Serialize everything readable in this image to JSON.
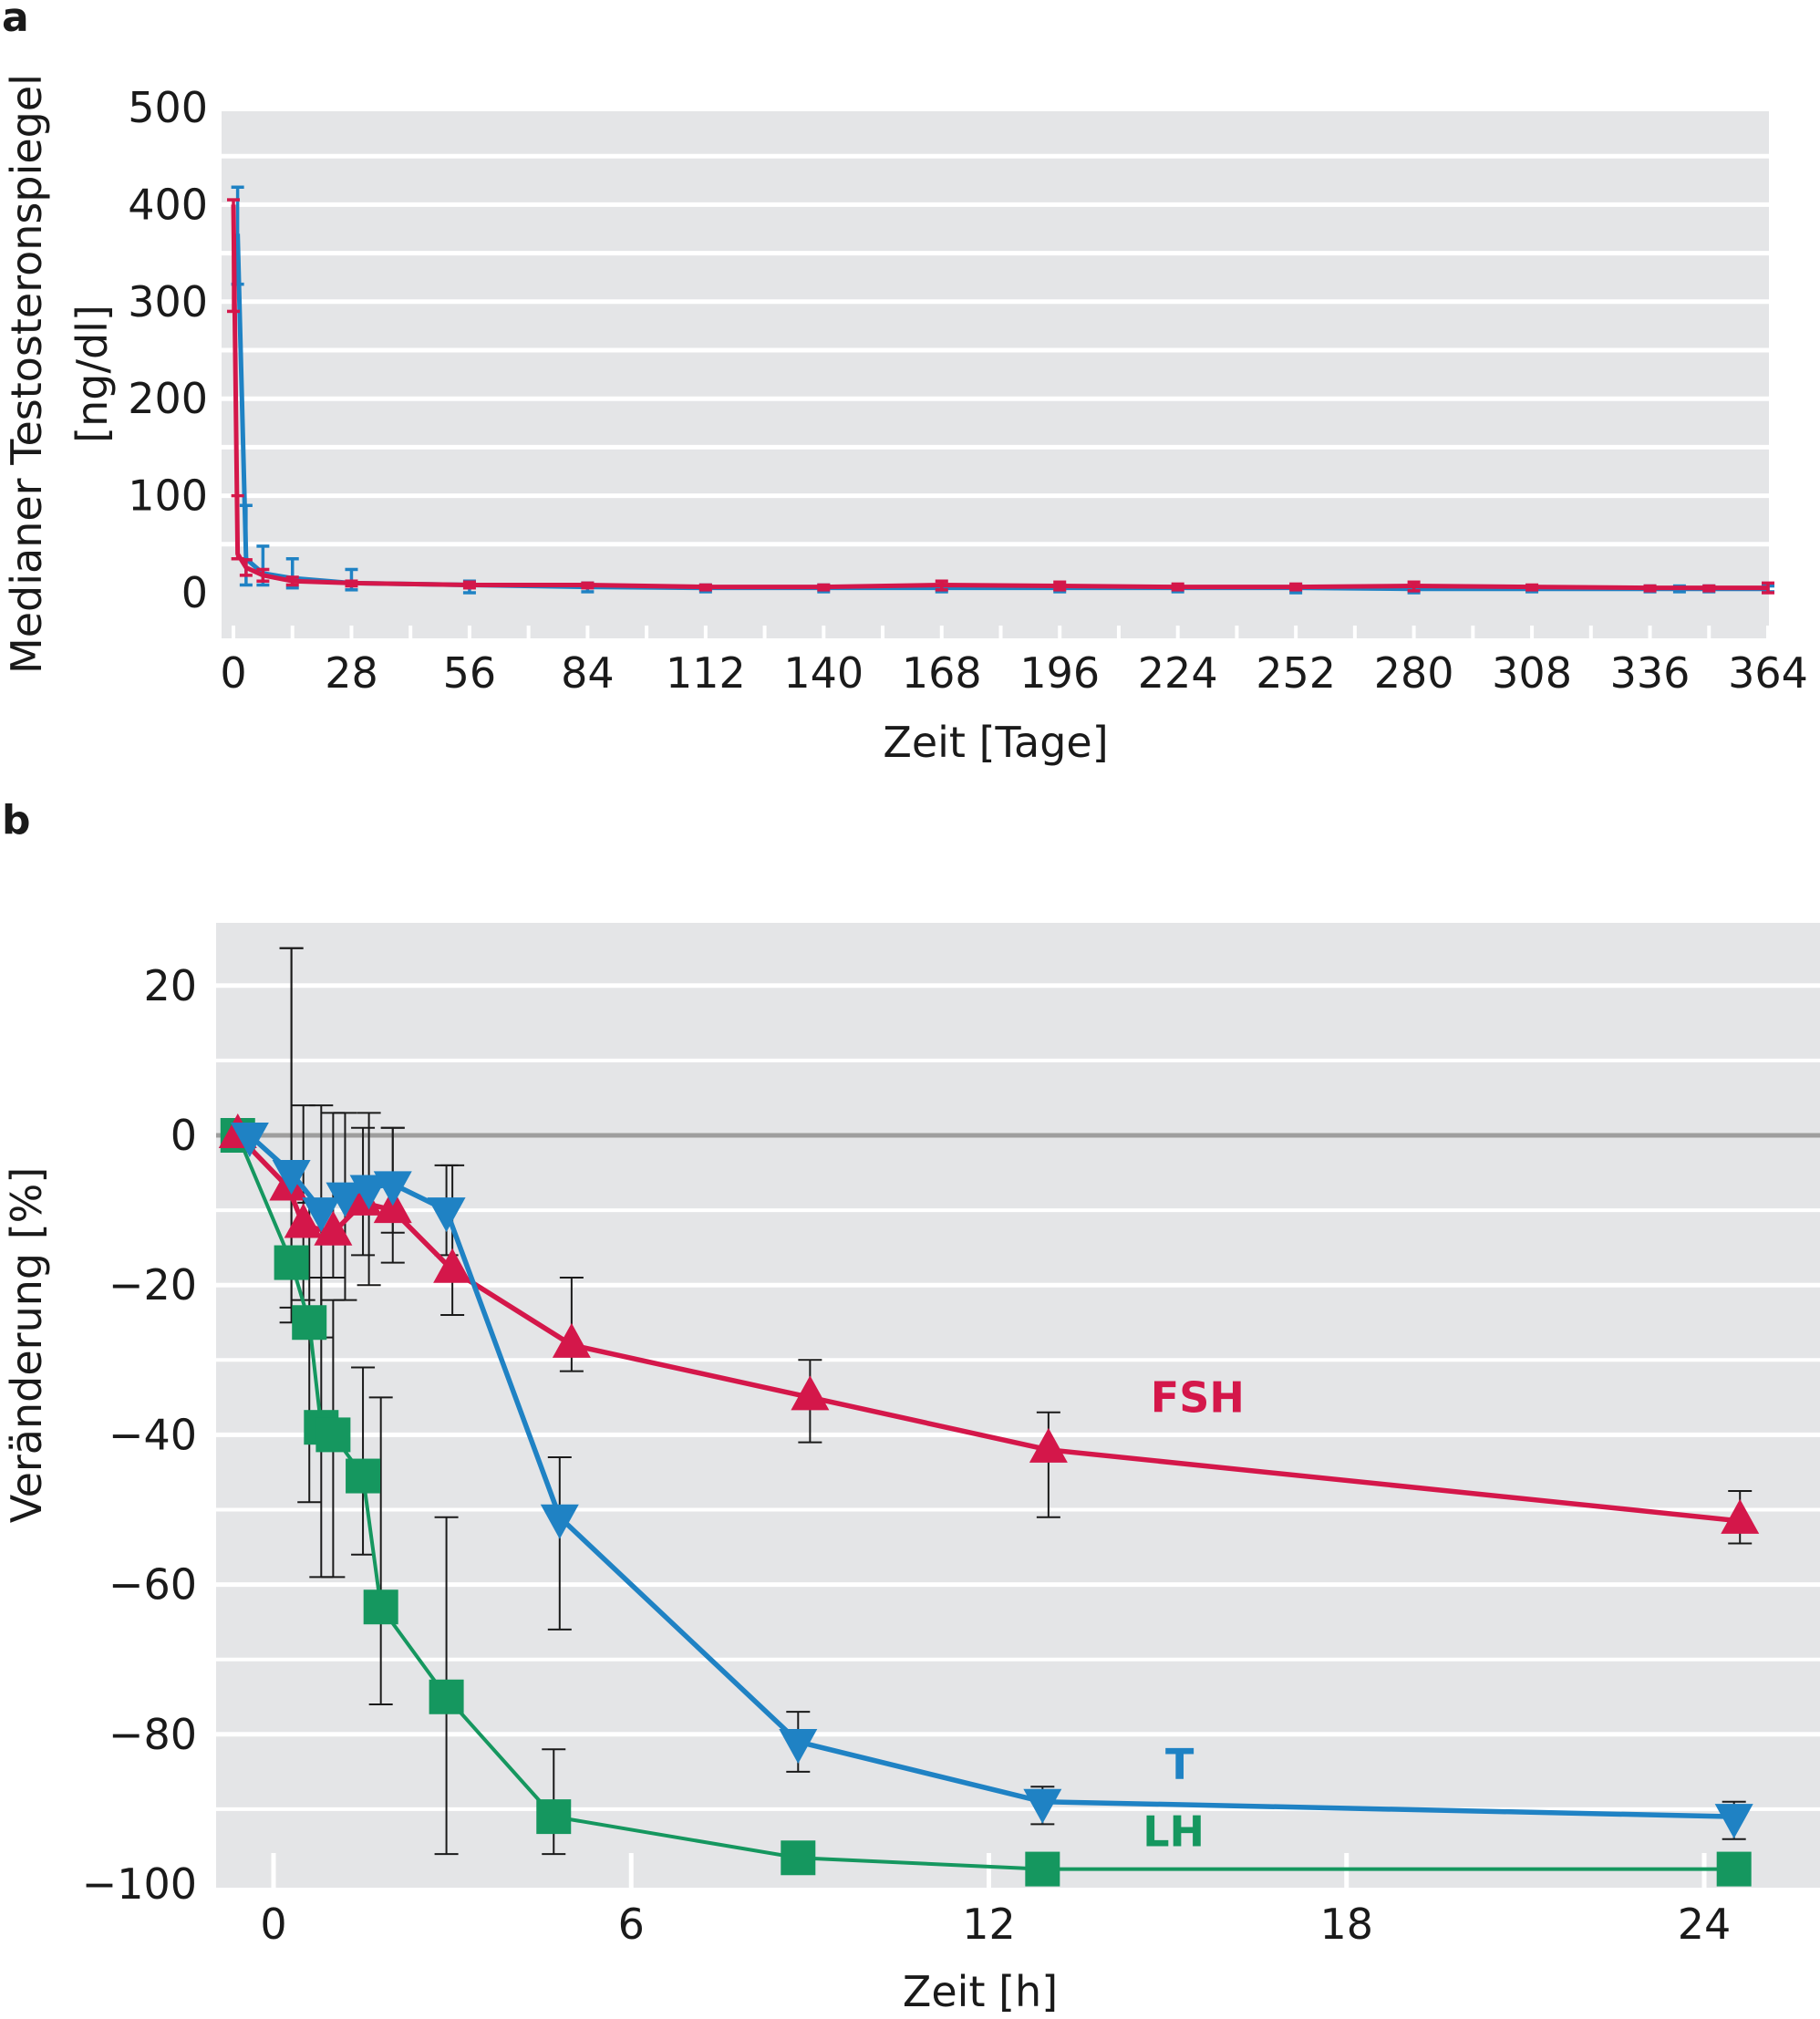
{
  "panels": {
    "a": {
      "letter": "a"
    },
    "b": {
      "letter": "b"
    }
  },
  "colors": {
    "background": "#ffffff",
    "plot_band": "#e4e5e7",
    "grid": "#ffffff",
    "zero_line": "#9e9e9e",
    "blue": "#1f82c4",
    "red": "#d4174a",
    "green": "#15975f",
    "error_bar_b": "#1a1a1a"
  },
  "chart_data": [
    {
      "id": "a",
      "type": "line",
      "title": "",
      "xlabel": "Zeit [Tage]",
      "ylabel": [
        "Medianer Testosteronspiegel",
        "[ng/dl]"
      ],
      "xlim": [
        0,
        364
      ],
      "ylim": [
        -40,
        500
      ],
      "xticks": [
        0,
        28,
        56,
        84,
        112,
        140,
        168,
        196,
        224,
        252,
        280,
        308,
        336,
        364
      ],
      "xtick_labels": [
        "0",
        "28",
        "56",
        "84",
        "112",
        "140",
        "168",
        "196",
        "224",
        "252",
        "280",
        "308",
        "336",
        "364"
      ],
      "yticks": [
        0,
        100,
        200,
        300,
        400,
        500
      ],
      "ytick_labels": [
        "0",
        "100",
        "200",
        "300",
        "400",
        "500"
      ],
      "grid": true,
      "legend": "none",
      "series": [
        {
          "color": "blue",
          "points": [
            {
              "x": 1,
              "y": 370,
              "lo": 318,
              "hi": 418
            },
            {
              "x": 3,
              "y": 35,
              "lo": 8,
              "hi": 90
            },
            {
              "x": 7,
              "y": 20,
              "lo": 8,
              "hi": 48
            },
            {
              "x": 14,
              "y": 15,
              "lo": 5,
              "hi": 35
            },
            {
              "x": 28,
              "y": 10,
              "lo": 3,
              "hi": 24
            },
            {
              "x": 56,
              "y": 8,
              "lo": 0,
              "hi": 12
            },
            {
              "x": 84,
              "y": 6,
              "lo": 1,
              "hi": 10
            },
            {
              "x": 112,
              "y": 5,
              "lo": 1,
              "hi": 8
            },
            {
              "x": 140,
              "y": 5,
              "lo": 1,
              "hi": 8
            },
            {
              "x": 168,
              "y": 5,
              "lo": 1,
              "hi": 8
            },
            {
              "x": 196,
              "y": 5,
              "lo": 1,
              "hi": 8
            },
            {
              "x": 224,
              "y": 5,
              "lo": 1,
              "hi": 8
            },
            {
              "x": 252,
              "y": 5,
              "lo": 0,
              "hi": 8
            },
            {
              "x": 280,
              "y": 4,
              "lo": 0,
              "hi": 7
            },
            {
              "x": 308,
              "y": 4,
              "lo": 1,
              "hi": 7
            },
            {
              "x": 336,
              "y": 4,
              "lo": 1,
              "hi": 7
            },
            {
              "x": 343,
              "y": 4,
              "lo": 1,
              "hi": 7
            },
            {
              "x": 350,
              "y": 4,
              "lo": 1,
              "hi": 7
            },
            {
              "x": 364,
              "y": 4,
              "lo": 1,
              "hi": 7
            }
          ]
        },
        {
          "color": "red",
          "points": [
            {
              "x": 0,
              "y": 400,
              "lo": 290,
              "hi": 405
            },
            {
              "x": 1,
              "y": 40,
              "lo": 35,
              "hi": 100
            },
            {
              "x": 3,
              "y": 26,
              "lo": 18,
              "hi": 34
            },
            {
              "x": 7,
              "y": 18,
              "lo": 12,
              "hi": 24
            },
            {
              "x": 14,
              "y": 12,
              "lo": 8,
              "hi": 16
            },
            {
              "x": 28,
              "y": 10,
              "lo": 7,
              "hi": 12
            },
            {
              "x": 56,
              "y": 8,
              "lo": 5,
              "hi": 11
            },
            {
              "x": 84,
              "y": 8,
              "lo": 5,
              "hi": 10
            },
            {
              "x": 112,
              "y": 6,
              "lo": 3,
              "hi": 8
            },
            {
              "x": 140,
              "y": 6,
              "lo": 3,
              "hi": 8
            },
            {
              "x": 168,
              "y": 8,
              "lo": 3,
              "hi": 12
            },
            {
              "x": 196,
              "y": 7,
              "lo": 3,
              "hi": 11
            },
            {
              "x": 224,
              "y": 6,
              "lo": 3,
              "hi": 9
            },
            {
              "x": 252,
              "y": 6,
              "lo": 3,
              "hi": 9
            },
            {
              "x": 280,
              "y": 7,
              "lo": 2,
              "hi": 11
            },
            {
              "x": 308,
              "y": 6,
              "lo": 3,
              "hi": 8
            },
            {
              "x": 336,
              "y": 5,
              "lo": 2,
              "hi": 7
            },
            {
              "x": 350,
              "y": 5,
              "lo": 2,
              "hi": 7
            },
            {
              "x": 364,
              "y": 5,
              "lo": 0,
              "hi": 10
            }
          ]
        }
      ]
    },
    {
      "id": "b",
      "type": "line",
      "title": "",
      "xlabel": "Zeit [h]",
      "ylabel": "Veränderung [%]",
      "xlim": [
        -1,
        25.5
      ],
      "ylim": [
        -101,
        29
      ],
      "xticks": [
        0,
        6,
        12,
        18,
        24
      ],
      "xtick_labels": [
        "0",
        "6",
        "12",
        "18",
        "24"
      ],
      "yticks": [
        20,
        0,
        -20,
        -40,
        -60,
        -80,
        -100
      ],
      "ytick_labels": [
        "20",
        "0",
        "−20",
        "−40",
        "−60",
        "−80",
        "−100"
      ],
      "grid": true,
      "legend": "inline labels",
      "series": [
        {
          "name": "FSH",
          "color": "red",
          "marker": "triangle-up",
          "label_pos": {
            "x": 15.5,
            "y": -35
          },
          "points": [
            {
              "x": -0.6,
              "y": 0
            },
            {
              "x": 0.25,
              "y": -7
            },
            {
              "x": 0.5,
              "y": -12,
              "lo": -22,
              "hi": 4
            },
            {
              "x": 1.0,
              "y": -13,
              "lo": -19,
              "hi": 3
            },
            {
              "x": 1.5,
              "y": -9,
              "lo": -16,
              "hi": 1
            },
            {
              "x": 2.0,
              "y": -10,
              "lo": -17,
              "hi": 1
            },
            {
              "x": 3.0,
              "y": -18,
              "lo": -24,
              "hi": -4
            },
            {
              "x": 5.0,
              "y": -28,
              "lo": -31.5,
              "hi": -19
            },
            {
              "x": 9.0,
              "y": -35,
              "lo": -41,
              "hi": -30
            },
            {
              "x": 13.0,
              "y": -42,
              "lo": -51,
              "hi": -37
            },
            {
              "x": 24.6,
              "y": -51.5,
              "lo": -54.5,
              "hi": -47.5
            }
          ]
        },
        {
          "name": "T",
          "color": "blue",
          "marker": "triangle-down",
          "label_pos": {
            "x": 15.2,
            "y": -84
          },
          "points": [
            {
              "x": -0.4,
              "y": 0
            },
            {
              "x": 0.3,
              "y": -5,
              "lo": -23,
              "hi": 25
            },
            {
              "x": 0.8,
              "y": -10,
              "lo": -27,
              "hi": 4
            },
            {
              "x": 1.2,
              "y": -8,
              "lo": -22,
              "hi": 3
            },
            {
              "x": 1.6,
              "y": -7,
              "lo": -20,
              "hi": 3
            },
            {
              "x": 2.0,
              "y": -6.5,
              "lo": -13,
              "hi": 1
            },
            {
              "x": 2.9,
              "y": -10,
              "lo": -16,
              "hi": -4
            },
            {
              "x": 4.8,
              "y": -51,
              "lo": -66,
              "hi": -43
            },
            {
              "x": 8.8,
              "y": -81,
              "lo": -85,
              "hi": -77
            },
            {
              "x": 12.9,
              "y": -89,
              "lo": -92,
              "hi": -87
            },
            {
              "x": 24.5,
              "y": -91,
              "lo": -94,
              "hi": -89
            }
          ]
        },
        {
          "name": "LH",
          "color": "green",
          "marker": "square",
          "label_pos": {
            "x": 15.1,
            "y": -93
          },
          "points": [
            {
              "x": -0.6,
              "y": 0
            },
            {
              "x": 0.3,
              "y": -17,
              "lo": -25,
              "hi": 25
            },
            {
              "x": 0.6,
              "y": -25,
              "lo": -49,
              "hi": -9
            },
            {
              "x": 0.8,
              "y": -39,
              "lo": -59,
              "hi": -19
            },
            {
              "x": 1.0,
              "y": -40,
              "lo": -59,
              "hi": -22
            },
            {
              "x": 1.5,
              "y": -45.5,
              "lo": -56,
              "hi": -31
            },
            {
              "x": 1.8,
              "y": -63,
              "lo": -76,
              "hi": -35
            },
            {
              "x": 2.9,
              "y": -75,
              "lo": -96,
              "hi": -51
            },
            {
              "x": 4.7,
              "y": -91,
              "lo": -96,
              "hi": -82
            },
            {
              "x": 8.8,
              "y": -96.5
            },
            {
              "x": 12.9,
              "y": -98
            },
            {
              "x": 24.5,
              "y": -98
            }
          ]
        }
      ]
    }
  ]
}
